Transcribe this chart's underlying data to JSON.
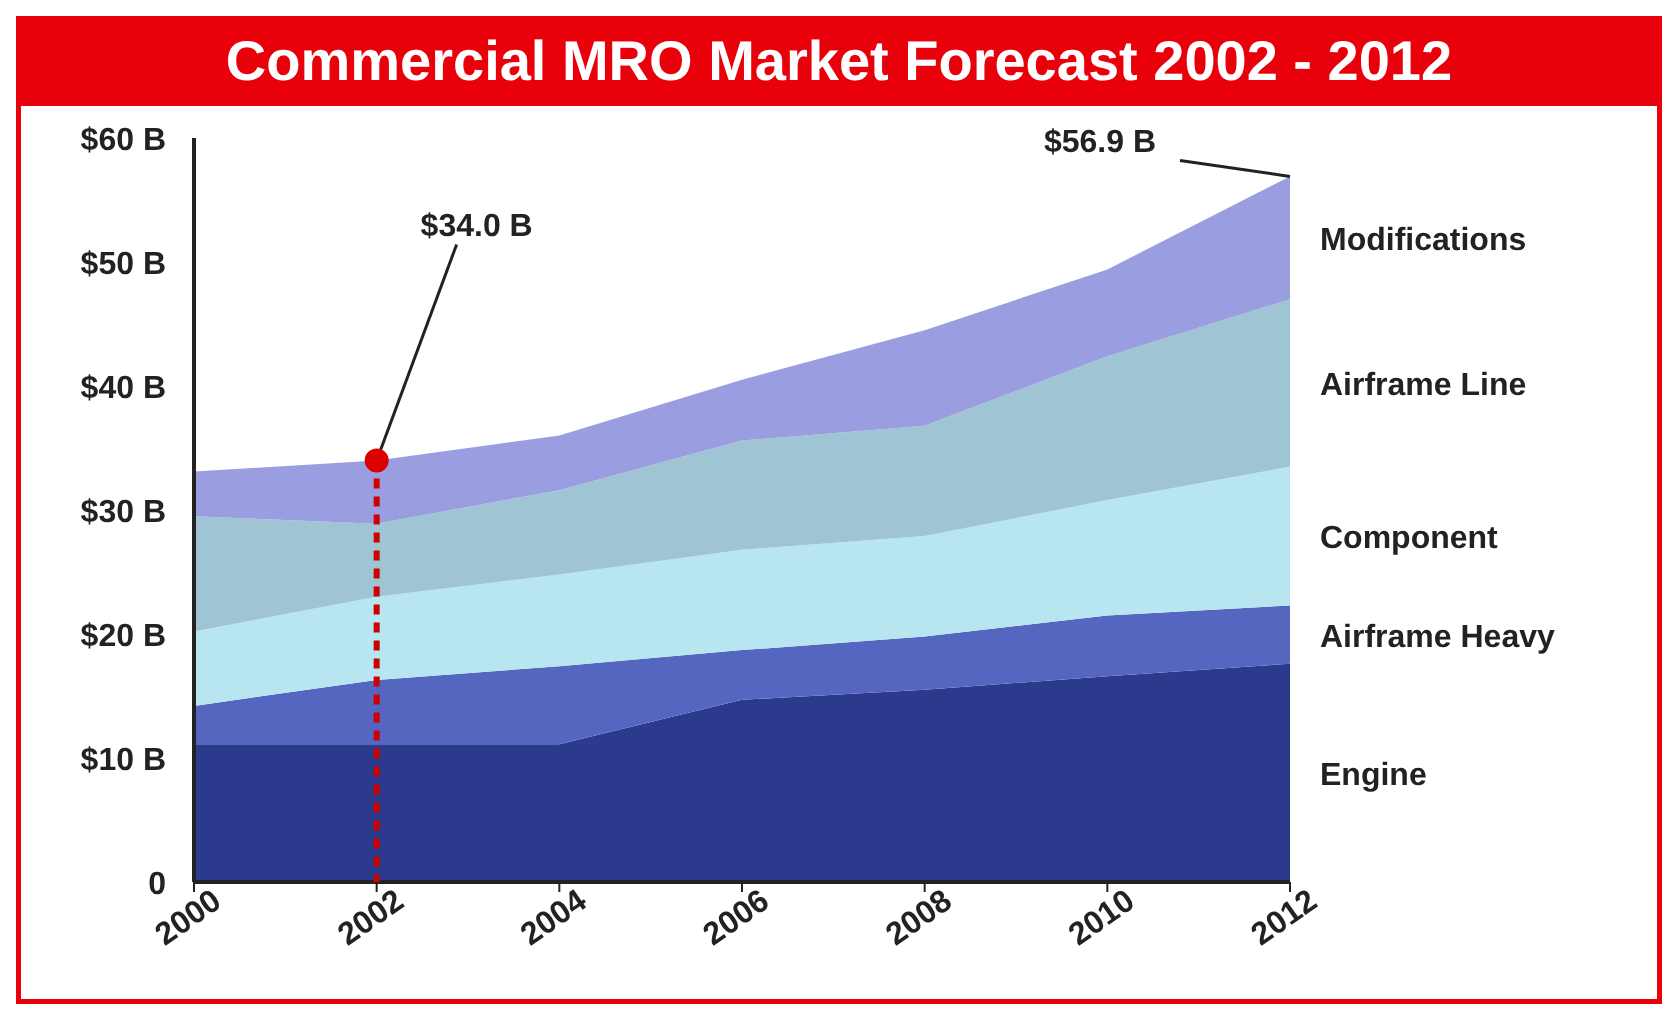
{
  "chart_data": {
    "type": "area",
    "stacked": true,
    "title": "Commercial MRO Market Forecast  2002 - 2012",
    "x": [
      2000,
      2002,
      2004,
      2006,
      2008,
      2010,
      2012
    ],
    "series": [
      {
        "name": "Engine",
        "color": "#2b3a8c",
        "values": [
          11.1,
          11.1,
          11.1,
          14.7,
          15.5,
          16.6,
          17.6
        ]
      },
      {
        "name": "Airframe Heavy",
        "color": "#5566c0",
        "values": [
          3.1,
          5.2,
          6.3,
          4.0,
          4.3,
          4.9,
          4.7
        ]
      },
      {
        "name": "Component",
        "color": "#b8e6f0",
        "values": [
          6.0,
          6.7,
          7.4,
          8.1,
          8.1,
          9.3,
          11.2
        ]
      },
      {
        "name": "Airframe Line",
        "color": "#9fc4d4",
        "values": [
          9.3,
          5.9,
          6.8,
          8.8,
          8.9,
          11.6,
          13.5
        ]
      },
      {
        "name": "Modifications",
        "color": "#9a9ee0",
        "values": [
          3.6,
          5.1,
          4.4,
          4.9,
          7.7,
          7.0,
          9.9
        ]
      }
    ],
    "xlim": [
      2000,
      2012
    ],
    "xticks": [
      2000,
      2002,
      2004,
      2006,
      2008,
      2010,
      2012
    ],
    "ylim": [
      0,
      60
    ],
    "yticks": [
      {
        "value": 0,
        "label": "0"
      },
      {
        "value": 10,
        "label": "$10 B"
      },
      {
        "value": 20,
        "label": "$20 B"
      },
      {
        "value": 30,
        "label": "$30 B"
      },
      {
        "value": 40,
        "label": "$40 B"
      },
      {
        "value": 50,
        "label": "$50 B"
      },
      {
        "value": 60,
        "label": "$60 B"
      }
    ],
    "annotations": [
      {
        "text": "$34.0 B",
        "x": 2002,
        "y": 34.0
      },
      {
        "text": "$56.9 B",
        "x": 2012,
        "y": 56.9
      }
    ],
    "grid": false
  }
}
